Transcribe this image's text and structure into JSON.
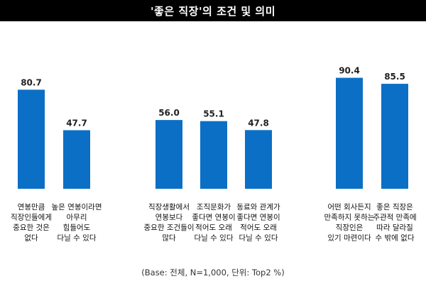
{
  "header": {
    "title": "'좋은 직장'의 조건 및 의미"
  },
  "footnote": "(Base: 전체, N=1,000, 단위: Top2 %)",
  "colors": {
    "bar": "#0B6FC6",
    "title_bg": "#000000",
    "title_text": "#FFFFFF"
  },
  "chart_data": {
    "type": "bar",
    "groups": [
      {
        "bars": [
          {
            "value": 80.7,
            "label": "80.7",
            "category": [
              "연봉만큼",
              "직장인들에게",
              "중요한 것은",
              "없다"
            ]
          },
          {
            "value": 47.7,
            "label": "47.7",
            "category": [
              "높은 연봉이라면",
              "아무리",
              "힘들어도",
              "다닐 수 있다"
            ]
          }
        ]
      },
      {
        "bars": [
          {
            "value": 56.0,
            "label": "56.0",
            "category": [
              "직장생활에서",
              "연봉보다",
              "중요한 조건들이",
              "많다"
            ]
          },
          {
            "value": 55.1,
            "label": "55.1",
            "category": [
              "조직문화가",
              "좋다면 연봉이",
              "적어도 오래",
              "다닐 수 있다"
            ]
          },
          {
            "value": 47.8,
            "label": "47.8",
            "category": [
              "동료와 관계가",
              "좋다면 연봉이",
              "적어도 오래",
              "다닐 수 있다"
            ]
          }
        ]
      },
      {
        "bars": [
          {
            "value": 90.4,
            "label": "90.4",
            "category": [
              "어떤 회사든지",
              "만족하지 못하는",
              "직장인은",
              "있기 마련이다"
            ]
          },
          {
            "value": 85.5,
            "label": "85.5",
            "category": [
              "좋은 직장은",
              "주관적 만족에",
              "따라 달라질",
              "수 밖에 없다"
            ]
          }
        ]
      }
    ],
    "ylim": [
      0,
      100
    ]
  }
}
